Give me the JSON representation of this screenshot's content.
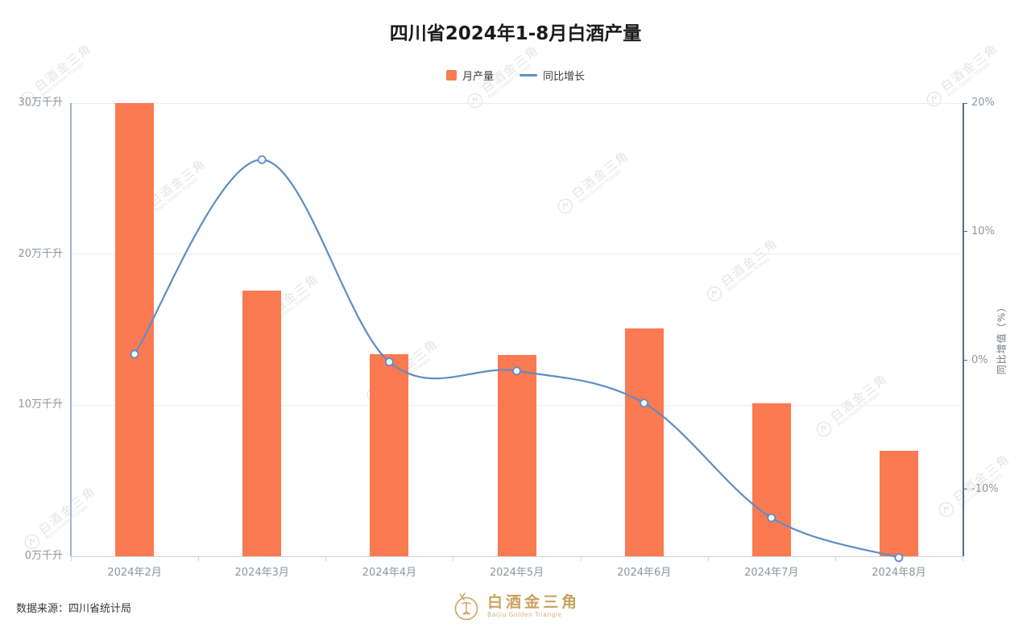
{
  "title": {
    "text": "四川省2024年1-8月白酒产量"
  },
  "legend": {
    "items": [
      {
        "label": "月产量",
        "type": "bar"
      },
      {
        "label": "同比增长",
        "type": "line"
      }
    ]
  },
  "colors": {
    "bar": "#FC7A51",
    "line": "#5D8DC5",
    "marker_fill": "#FFFFFF",
    "gold": "#C9A25E",
    "title": "#1A1A1A",
    "axis_label": "#8F959B",
    "grid": "#ECECEC",
    "left_axis_line": "#A6B5C6",
    "right_axis_line": "#4C7095",
    "x_axis_line": "#CFD3D8"
  },
  "chart_data": {
    "type": "bar",
    "categories": [
      "2024年2月",
      "2024年3月",
      "2024年4月",
      "2024年5月",
      "2024年6月",
      "2024年7月",
      "2024年8月"
    ],
    "series": [
      {
        "name": "月产量",
        "type": "bar",
        "axis": "left",
        "unit": "万千升",
        "values": [
          30.0,
          17.6,
          13.4,
          13.3,
          15.1,
          10.1,
          7.0
        ]
      },
      {
        "name": "同比增长",
        "type": "line",
        "axis": "right",
        "unit": "%",
        "values": [
          0.5,
          15.6,
          -0.1,
          -0.8,
          -3.3,
          -12.2,
          -15.3
        ]
      }
    ],
    "left_axis": {
      "tick_labels": [
        "0万千升",
        "10万千升",
        "20万千升",
        "30万千升"
      ],
      "tick_values": [
        0,
        10,
        20,
        30
      ],
      "min": 0,
      "max": 30
    },
    "right_axis": {
      "name": "同比增值（%）",
      "tick_labels": [
        "20%",
        "10%",
        "0%",
        "-10%"
      ],
      "tick_values": [
        20,
        10,
        0,
        -10
      ],
      "min": -15.19,
      "max": 20
    },
    "grid": true,
    "legend_position": "top"
  },
  "source": {
    "text": "数据来源：四川省统计局"
  },
  "footer_logo": {
    "cn": "白酒金三角",
    "en": "Baijiu Golden Triangle"
  },
  "watermark": {
    "cn": "白酒金三角",
    "en": "Baijiu Golden Triangle"
  }
}
